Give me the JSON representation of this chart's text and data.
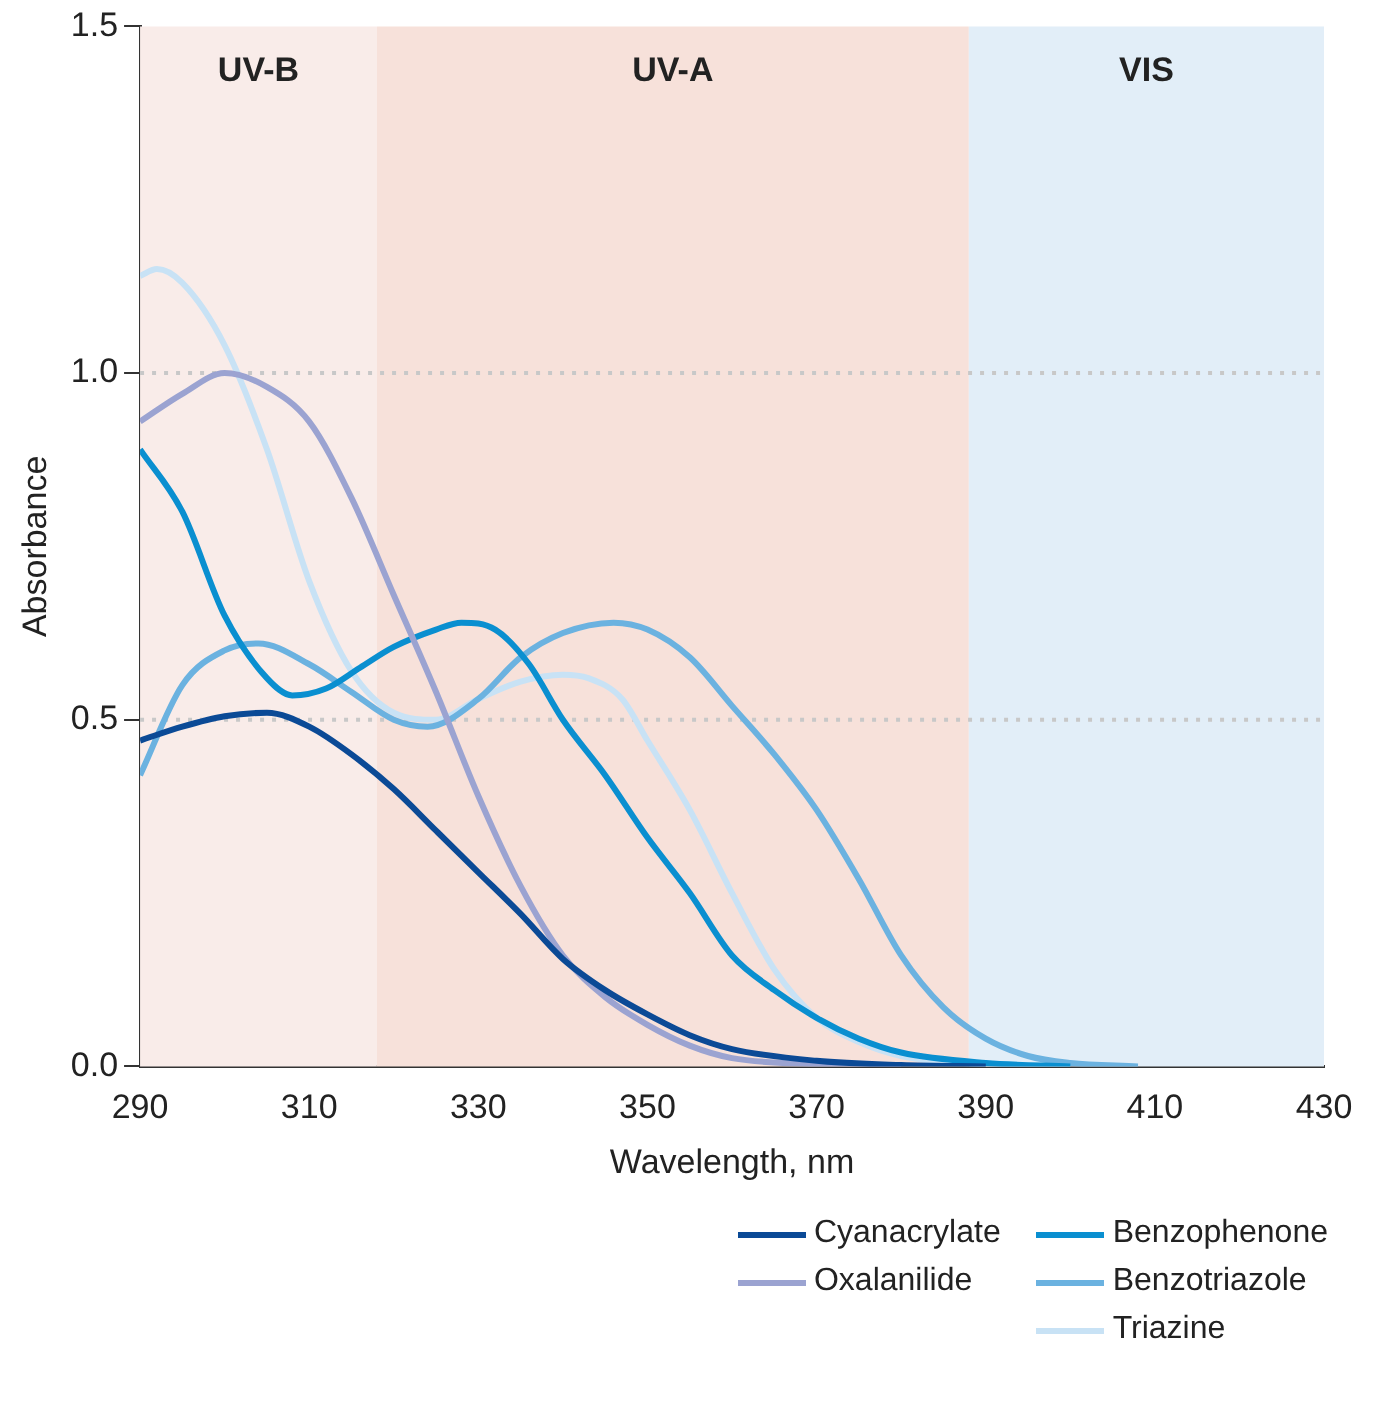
{
  "chart_data": {
    "type": "line",
    "xlabel": "Wavelength, nm",
    "ylabel": "Absorbance",
    "xlim": [
      290,
      430
    ],
    "xticks": [
      290,
      310,
      330,
      350,
      370,
      390,
      410,
      430
    ],
    "ylim": [
      0,
      1.5
    ],
    "yticks": [
      {
        "value": 0,
        "label": "0.0"
      },
      0.5,
      {
        "value": 1,
        "label": "1.0"
      },
      1.5
    ],
    "grid": "y",
    "legend": "bottom right",
    "line_style": "solid",
    "marker": "none",
    "bands": [
      {
        "axis": "x",
        "from": 290,
        "to": 318,
        "label": "UV-B",
        "color": "#f9ece9"
      },
      {
        "axis": "x",
        "from": 318,
        "to": 388,
        "label": "UV-A",
        "color": "#f7e1da"
      },
      {
        "axis": "x",
        "from": 388,
        "to": 430,
        "label": "VIS",
        "color": "#e2eef8"
      }
    ],
    "series": [
      {
        "name": "Cyanacrylate",
        "color": "#0b4a96",
        "x": [
          290,
          295,
          300,
          305,
          310,
          315,
          320,
          325,
          330,
          335,
          340,
          345,
          350,
          355,
          360,
          370,
          380,
          390
        ],
        "values": [
          0.47,
          0.49,
          0.505,
          0.51,
          0.49,
          0.45,
          0.4,
          0.34,
          0.28,
          0.22,
          0.155,
          0.11,
          0.075,
          0.045,
          0.025,
          0.008,
          0.002,
          0
        ]
      },
      {
        "name": "Oxalanilide",
        "color": "#9ba3d1",
        "x": [
          290,
          295,
          300,
          305,
          310,
          315,
          320,
          325,
          330,
          335,
          340,
          345,
          350,
          355,
          360,
          370,
          380
        ],
        "values": [
          0.93,
          0.97,
          1.0,
          0.98,
          0.93,
          0.82,
          0.68,
          0.54,
          0.39,
          0.26,
          0.16,
          0.1,
          0.06,
          0.03,
          0.012,
          0.003,
          0
        ]
      },
      {
        "name": "Benzophenone",
        "color": "#0a8fd0",
        "x": [
          290,
          295,
          300,
          305,
          308,
          312,
          316,
          320,
          325,
          328,
          332,
          336,
          340,
          345,
          350,
          355,
          360,
          365,
          370,
          375,
          380,
          390,
          400
        ],
        "values": [
          0.89,
          0.8,
          0.65,
          0.56,
          0.535,
          0.545,
          0.575,
          0.605,
          0.63,
          0.64,
          0.63,
          0.58,
          0.5,
          0.42,
          0.33,
          0.25,
          0.16,
          0.11,
          0.07,
          0.04,
          0.02,
          0.005,
          0
        ]
      },
      {
        "name": "Benzotriazole",
        "color": "#6bb2e0",
        "x": [
          290,
          295,
          300,
          304,
          310,
          315,
          320,
          324,
          330,
          335,
          340,
          346,
          350,
          355,
          360,
          365,
          370,
          375,
          380,
          385,
          390,
          395,
          400,
          408
        ],
        "values": [
          0.42,
          0.55,
          0.6,
          0.61,
          0.58,
          0.54,
          0.5,
          0.49,
          0.53,
          0.59,
          0.625,
          0.64,
          0.63,
          0.59,
          0.52,
          0.45,
          0.37,
          0.27,
          0.16,
          0.085,
          0.04,
          0.015,
          0.005,
          0
        ]
      },
      {
        "name": "Triazine",
        "color": "#c8e2f5",
        "x": [
          290,
          292,
          295,
          300,
          305,
          310,
          315,
          320,
          325,
          330,
          335,
          340,
          343,
          347,
          350,
          355,
          360,
          365,
          370,
          375,
          380,
          390,
          400
        ],
        "values": [
          1.14,
          1.15,
          1.13,
          1.04,
          0.89,
          0.7,
          0.57,
          0.51,
          0.5,
          0.53,
          0.555,
          0.565,
          0.56,
          0.53,
          0.47,
          0.37,
          0.25,
          0.14,
          0.07,
          0.035,
          0.015,
          0.003,
          0
        ]
      }
    ]
  }
}
